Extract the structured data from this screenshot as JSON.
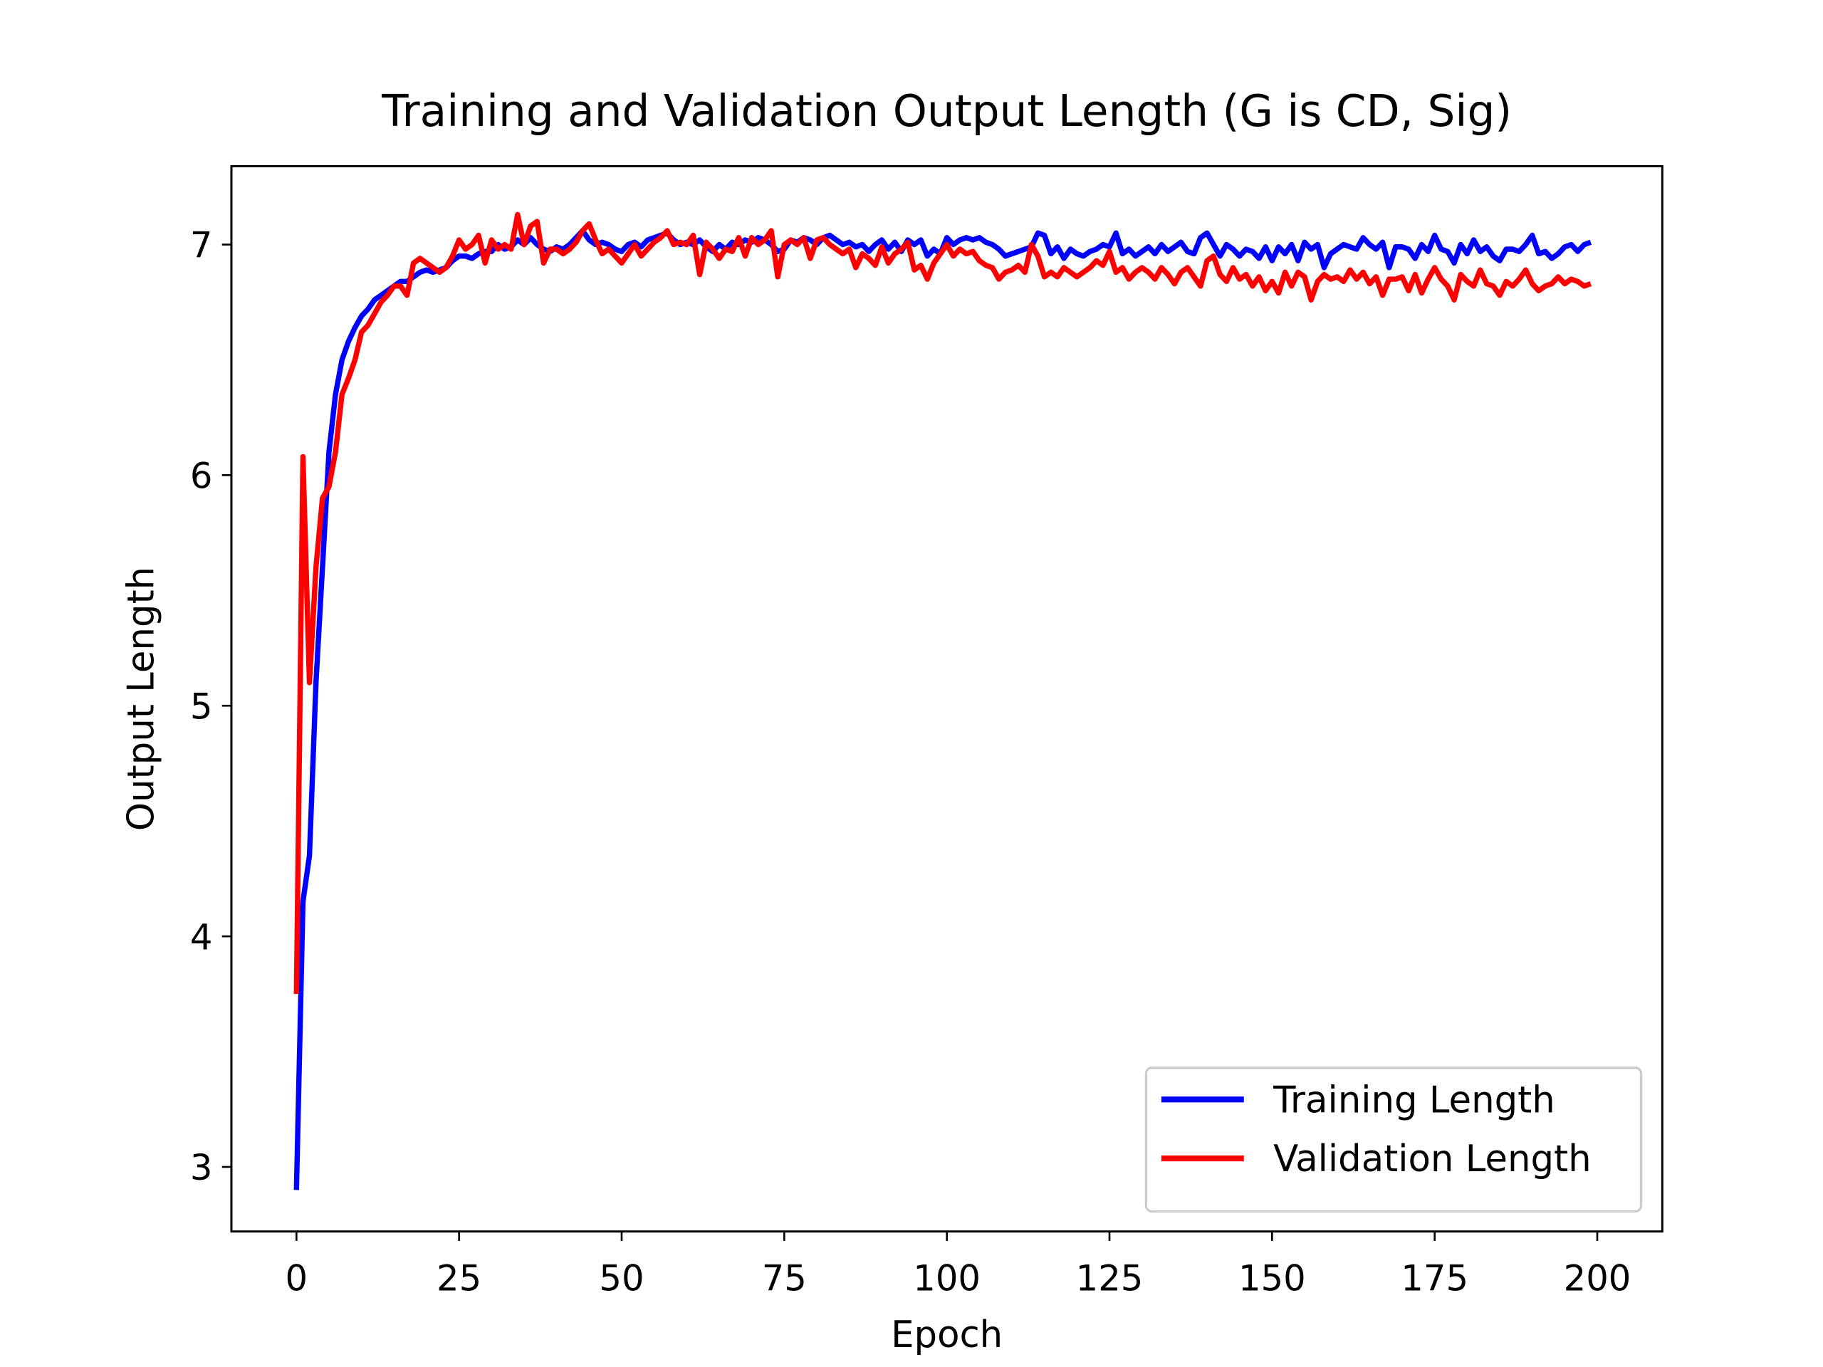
{
  "chart_data": {
    "type": "line",
    "title": "Training and Validation Output Length (G is CD, Sig)",
    "xlabel": "Epoch",
    "ylabel": "Output Length",
    "xlim": [
      -10,
      210
    ],
    "xticks": [
      0,
      25,
      50,
      75,
      100,
      125,
      150,
      175,
      200
    ],
    "ylim": [
      2.72,
      7.34
    ],
    "yticks": [
      3,
      4,
      5,
      6,
      7
    ],
    "grid": false,
    "legend": "lower right",
    "x": [
      0,
      1,
      2,
      3,
      4,
      5,
      6,
      7,
      8,
      9,
      10,
      11,
      12,
      13,
      14,
      15,
      16,
      17,
      18,
      19,
      20,
      21,
      22,
      23,
      24,
      25,
      26,
      27,
      28,
      29,
      30,
      31,
      32,
      33,
      34,
      35,
      36,
      37,
      38,
      39,
      40,
      41,
      42,
      43,
      44,
      45,
      46,
      47,
      48,
      49,
      50,
      51,
      52,
      53,
      54,
      55,
      56,
      57,
      58,
      59,
      60,
      61,
      62,
      63,
      64,
      65,
      66,
      67,
      68,
      69,
      70,
      71,
      72,
      73,
      74,
      75,
      76,
      77,
      78,
      79,
      80,
      81,
      82,
      83,
      84,
      85,
      86,
      87,
      88,
      89,
      90,
      91,
      92,
      93,
      94,
      95,
      96,
      97,
      98,
      99,
      100,
      101,
      102,
      103,
      104,
      105,
      106,
      107,
      108,
      109,
      110,
      111,
      112,
      113,
      114,
      115,
      116,
      117,
      118,
      119,
      120,
      121,
      122,
      123,
      124,
      125,
      126,
      127,
      128,
      129,
      130,
      131,
      132,
      133,
      134,
      135,
      136,
      137,
      138,
      139,
      140,
      141,
      142,
      143,
      144,
      145,
      146,
      147,
      148,
      149,
      150,
      151,
      152,
      153,
      154,
      155,
      156,
      157,
      158,
      159,
      160,
      161,
      162,
      163,
      164,
      165,
      166,
      167,
      168,
      169,
      170,
      171,
      172,
      173,
      174,
      175,
      176,
      177,
      178,
      179,
      180,
      181,
      182,
      183,
      184,
      185,
      186,
      187,
      188,
      189,
      190,
      191,
      192,
      193,
      194,
      195,
      196,
      197,
      198,
      199
    ],
    "series": [
      {
        "name": "Training Length",
        "color": "#0000ff",
        "values": [
          2.9,
          4.15,
          4.35,
          5.1,
          5.6,
          6.1,
          6.35,
          6.5,
          6.58,
          6.64,
          6.69,
          6.72,
          6.76,
          6.78,
          6.8,
          6.82,
          6.84,
          6.84,
          6.86,
          6.88,
          6.89,
          6.88,
          6.89,
          6.9,
          6.93,
          6.95,
          6.95,
          6.94,
          6.96,
          6.97,
          6.97,
          7.0,
          6.98,
          6.99,
          7.02,
          7.0,
          7.03,
          7.0,
          6.98,
          6.97,
          6.99,
          6.98,
          7.0,
          7.03,
          7.06,
          7.02,
          7.0,
          7.01,
          7.0,
          6.98,
          6.97,
          7.0,
          7.01,
          6.99,
          7.02,
          7.03,
          7.04,
          7.05,
          7.02,
          7.0,
          7.01,
          7.0,
          7.02,
          6.99,
          6.97,
          7.0,
          6.98,
          7.01,
          7.0,
          7.02,
          7.01,
          7.03,
          7.02,
          7.0,
          6.97,
          6.98,
          7.02,
          7.01,
          7.03,
          7.02,
          7.0,
          7.03,
          7.04,
          7.02,
          7.0,
          7.01,
          6.99,
          7.0,
          6.97,
          7.0,
          7.02,
          6.98,
          7.01,
          6.97,
          7.02,
          7.0,
          7.02,
          6.95,
          6.98,
          6.96,
          7.03,
          7.0,
          7.02,
          7.03,
          7.02,
          7.03,
          7.01,
          7.0,
          6.98,
          6.95,
          6.96,
          6.97,
          6.98,
          6.99,
          7.05,
          7.04,
          6.96,
          6.99,
          6.94,
          6.98,
          6.96,
          6.95,
          6.97,
          6.98,
          7.0,
          6.99,
          7.05,
          6.96,
          6.98,
          6.95,
          6.97,
          6.99,
          6.96,
          7.0,
          6.97,
          6.99,
          7.01,
          6.97,
          6.96,
          7.03,
          7.05,
          7.0,
          6.95,
          7.0,
          6.98,
          6.95,
          6.98,
          6.97,
          6.94,
          6.99,
          6.93,
          6.99,
          6.96,
          7.0,
          6.93,
          7.01,
          6.98,
          7.0,
          6.9,
          6.96,
          6.98,
          7.0,
          6.99,
          6.98,
          7.03,
          7.0,
          6.98,
          7.01,
          6.9,
          6.99,
          6.99,
          6.98,
          6.94,
          7.0,
          6.97,
          7.04,
          6.98,
          6.97,
          6.92,
          7.0,
          6.96,
          7.02,
          6.97,
          6.99,
          6.95,
          6.93,
          6.98,
          6.98,
          6.97,
          7.0,
          7.04,
          6.96,
          6.97,
          6.94,
          6.96,
          6.99,
          7.0,
          6.97,
          7.0,
          7.01
        ]
      },
      {
        "name": "Validation Length",
        "color": "#ff0000",
        "values": [
          3.75,
          6.08,
          5.1,
          5.6,
          5.9,
          5.95,
          6.1,
          6.35,
          6.42,
          6.5,
          6.62,
          6.65,
          6.7,
          6.75,
          6.78,
          6.82,
          6.82,
          6.78,
          6.92,
          6.94,
          6.92,
          6.9,
          6.88,
          6.9,
          6.95,
          7.02,
          6.98,
          7.0,
          7.04,
          6.92,
          7.02,
          6.98,
          7.0,
          6.98,
          7.13,
          7.0,
          7.08,
          7.1,
          6.92,
          6.98,
          6.98,
          6.96,
          6.98,
          7.01,
          7.06,
          7.09,
          7.02,
          6.96,
          6.98,
          6.95,
          6.92,
          6.96,
          7.0,
          6.95,
          6.98,
          7.01,
          7.03,
          7.06,
          7.0,
          7.01,
          7.0,
          7.04,
          6.87,
          7.01,
          6.98,
          6.94,
          6.98,
          6.97,
          7.03,
          6.95,
          7.03,
          7.0,
          7.02,
          7.06,
          6.86,
          7.0,
          7.02,
          7.0,
          7.03,
          6.94,
          7.02,
          7.03,
          7.0,
          6.98,
          6.96,
          6.98,
          6.9,
          6.96,
          6.94,
          6.91,
          6.99,
          6.92,
          6.96,
          6.98,
          7.01,
          6.89,
          6.91,
          6.85,
          6.92,
          6.96,
          7.0,
          6.95,
          6.98,
          6.96,
          6.97,
          6.93,
          6.91,
          6.9,
          6.85,
          6.88,
          6.89,
          6.91,
          6.88,
          7.0,
          6.95,
          6.86,
          6.88,
          6.86,
          6.9,
          6.88,
          6.86,
          6.88,
          6.9,
          6.93,
          6.91,
          6.97,
          6.88,
          6.9,
          6.85,
          6.88,
          6.9,
          6.88,
          6.85,
          6.9,
          6.87,
          6.83,
          6.88,
          6.9,
          6.86,
          6.82,
          6.93,
          6.95,
          6.87,
          6.84,
          6.9,
          6.85,
          6.87,
          6.82,
          6.86,
          6.8,
          6.84,
          6.79,
          6.88,
          6.82,
          6.88,
          6.86,
          6.76,
          6.84,
          6.87,
          6.85,
          6.86,
          6.84,
          6.89,
          6.85,
          6.88,
          6.83,
          6.86,
          6.78,
          6.85,
          6.85,
          6.86,
          6.8,
          6.87,
          6.79,
          6.85,
          6.9,
          6.85,
          6.82,
          6.76,
          6.87,
          6.84,
          6.82,
          6.89,
          6.83,
          6.82,
          6.78,
          6.84,
          6.82,
          6.85,
          6.89,
          6.83,
          6.8,
          6.82,
          6.83,
          6.86,
          6.83,
          6.85,
          6.84,
          6.82,
          6.83
        ]
      }
    ]
  }
}
